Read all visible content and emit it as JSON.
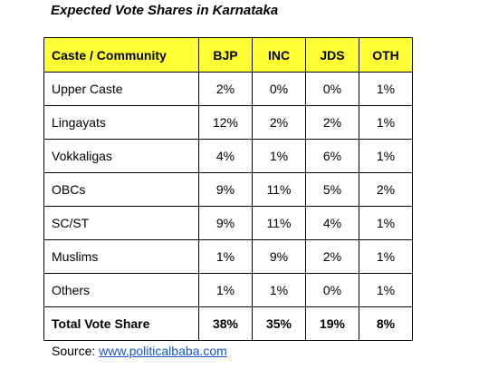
{
  "document": {
    "title": "Expected Vote Shares in Karnataka",
    "table": {
      "headers": [
        "Caste / Community",
        "BJP",
        "INC",
        "JDS",
        "OTH"
      ],
      "rows": [
        [
          "Upper Caste",
          "2%",
          "0%",
          "0%",
          "1%"
        ],
        [
          "Lingayats",
          "12%",
          "2%",
          "2%",
          "1%"
        ],
        [
          "Vokkaligas",
          "4%",
          "1%",
          "6%",
          "1%"
        ],
        [
          "OBCs",
          "9%",
          "11%",
          "5%",
          "2%"
        ],
        [
          "SC/ST",
          "9%",
          "11%",
          "4%",
          "1%"
        ],
        [
          "Muslims",
          "1%",
          "9%",
          "2%",
          "1%"
        ],
        [
          "Others",
          "1%",
          "1%",
          "0%",
          "1%"
        ]
      ],
      "total": [
        "Total Vote Share",
        "38%",
        "35%",
        "19%",
        "8%"
      ]
    },
    "source": {
      "label": "Source: ",
      "link_text": "www.politicalbaba.com"
    },
    "colors": {
      "header_background": "#ffff33",
      "link": "#1155cc"
    }
  }
}
